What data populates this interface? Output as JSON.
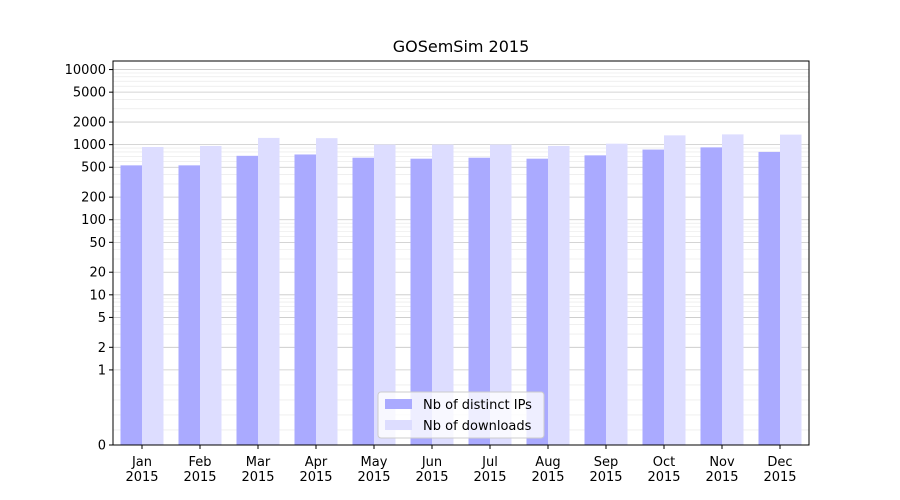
{
  "chart_data": {
    "type": "bar",
    "title": "GOSemSim 2015",
    "xlabel": "",
    "ylabel": "",
    "y_scale": "symlog",
    "ylim": [
      0,
      13000
    ],
    "y_ticks": [
      0,
      1,
      2,
      5,
      10,
      20,
      50,
      100,
      200,
      500,
      1000,
      2000,
      5000,
      10000
    ],
    "y_tick_labels": [
      "0",
      "1",
      "2",
      "5",
      "10",
      "20",
      "50",
      "100",
      "200",
      "500",
      "1000",
      "2000",
      "5000",
      "10000"
    ],
    "grid": true,
    "legend_position": "bottom-center",
    "categories": [
      [
        "Jan",
        "2015"
      ],
      [
        "Feb",
        "2015"
      ],
      [
        "Mar",
        "2015"
      ],
      [
        "Apr",
        "2015"
      ],
      [
        "May",
        "2015"
      ],
      [
        "Jun",
        "2015"
      ],
      [
        "Jul",
        "2015"
      ],
      [
        "Aug",
        "2015"
      ],
      [
        "Sep",
        "2015"
      ],
      [
        "Oct",
        "2015"
      ],
      [
        "Nov",
        "2015"
      ],
      [
        "Dec",
        "2015"
      ]
    ],
    "series": [
      {
        "name": "Nb of distinct IPs",
        "color": "#aaaaff",
        "values": [
          530,
          530,
          710,
          740,
          670,
          650,
          670,
          650,
          720,
          860,
          920,
          800
        ]
      },
      {
        "name": "Nb of downloads",
        "color": "#ddddff",
        "values": [
          930,
          960,
          1230,
          1220,
          1000,
          1000,
          1000,
          960,
          1030,
          1330,
          1370,
          1360
        ]
      }
    ]
  }
}
